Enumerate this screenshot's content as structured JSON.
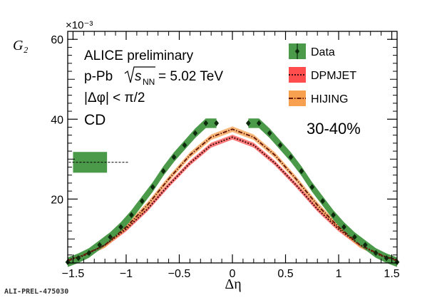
{
  "footer_tag": "ALI-PREL-475030",
  "chart_data": {
    "type": "line",
    "xlabel": "Δη",
    "ylabel": "G₂",
    "y_multiplier": "×10⁻³",
    "xlim": [
      -1.55,
      1.55
    ],
    "ylim": [
      4,
      62
    ],
    "x_ticks": [
      -1.5,
      -1,
      -0.5,
      0,
      0.5,
      1,
      1.5
    ],
    "x_tick_labels": [
      "−1.5",
      "−1",
      "−0.5",
      "0",
      "0.5",
      "1",
      "1.5"
    ],
    "y_ticks": [
      20,
      40,
      60
    ],
    "y_tick_labels": [
      "20",
      "40",
      "60"
    ],
    "grid": false,
    "annotations": {
      "experiment": "ALICE preliminary",
      "system_prefix": "p-Pb",
      "energy_sym": "s",
      "energy_sub": "NN",
      "energy_value": "= 5.02 TeV",
      "cut": "|Δφ| < π/2",
      "component": "CD",
      "centrality": "30-40%"
    },
    "legend": {
      "placement": "top-right",
      "entries": [
        {
          "label": "Data",
          "color": "#4a9a4a",
          "marker": "diamond"
        },
        {
          "label": "DPMJET",
          "color": "#ff4d4d",
          "line_color": "#3d0c0c",
          "line": "dotted"
        },
        {
          "label": "HIJING",
          "color": "#f7a050",
          "line_color": "#6a1a0a",
          "line": "dashdot"
        }
      ]
    },
    "syst_box": {
      "x": [
        -1.5,
        -1.18
      ],
      "y": [
        26.6,
        31.8
      ],
      "level": 29.2,
      "dashed_to": -0.98,
      "color": "#4a9a4a"
    },
    "series": [
      {
        "name": "Data",
        "color": "#4a9a4a",
        "marker_color": "#0d2a0d",
        "band": 1.2,
        "points": [
          [
            -1.55,
            4.2
          ],
          [
            -1.45,
            5.2
          ],
          [
            -1.35,
            6.5
          ],
          [
            -1.25,
            8.5
          ],
          [
            -1.15,
            10.5
          ],
          [
            -1.05,
            13.0
          ],
          [
            -0.95,
            16.0
          ],
          [
            -0.85,
            19.5
          ],
          [
            -0.75,
            23.0
          ],
          [
            -0.65,
            27.0
          ],
          [
            -0.55,
            30.5
          ],
          [
            -0.45,
            33.5
          ],
          [
            -0.35,
            36.5
          ],
          [
            -0.25,
            39.0
          ],
          [
            -0.15,
            39.0
          ],
          [
            0.15,
            39.0
          ],
          [
            0.25,
            39.0
          ],
          [
            0.35,
            36.5
          ],
          [
            0.45,
            33.5
          ],
          [
            0.55,
            30.5
          ],
          [
            0.65,
            27.0
          ],
          [
            0.75,
            23.0
          ],
          [
            0.85,
            19.5
          ],
          [
            0.95,
            16.0
          ],
          [
            1.05,
            13.0
          ],
          [
            1.15,
            10.5
          ],
          [
            1.25,
            8.5
          ],
          [
            1.35,
            6.5
          ],
          [
            1.45,
            5.2
          ],
          [
            1.55,
            4.2
          ]
        ]
      },
      {
        "name": "DPMJET",
        "color": "#ff4d4d",
        "line_color": "#3d0c0c",
        "band": 0.6,
        "x": [
          -1.55,
          -1.4,
          -1.2,
          -1.0,
          -0.8,
          -0.6,
          -0.4,
          -0.2,
          0.0,
          0.2,
          0.4,
          0.6,
          0.8,
          1.0,
          1.2,
          1.4,
          1.55
        ],
        "y": [
          4.8,
          5.8,
          8.5,
          12.5,
          17.5,
          23.5,
          29.0,
          33.5,
          35.5,
          33.5,
          29.0,
          23.5,
          17.5,
          12.5,
          8.5,
          5.8,
          4.8
        ]
      },
      {
        "name": "HIJING",
        "color": "#f7a050",
        "line_color": "#6a1a0a",
        "band": 0.7,
        "x": [
          -1.55,
          -1.4,
          -1.2,
          -1.0,
          -0.8,
          -0.6,
          -0.4,
          -0.2,
          0.0,
          0.2,
          0.4,
          0.6,
          0.8,
          1.0,
          1.2,
          1.4,
          1.55
        ],
        "y": [
          4.5,
          6.0,
          8.5,
          13.0,
          18.5,
          25.0,
          31.0,
          35.5,
          37.5,
          35.5,
          31.0,
          25.0,
          18.5,
          13.0,
          8.5,
          6.0,
          4.5
        ]
      }
    ]
  }
}
